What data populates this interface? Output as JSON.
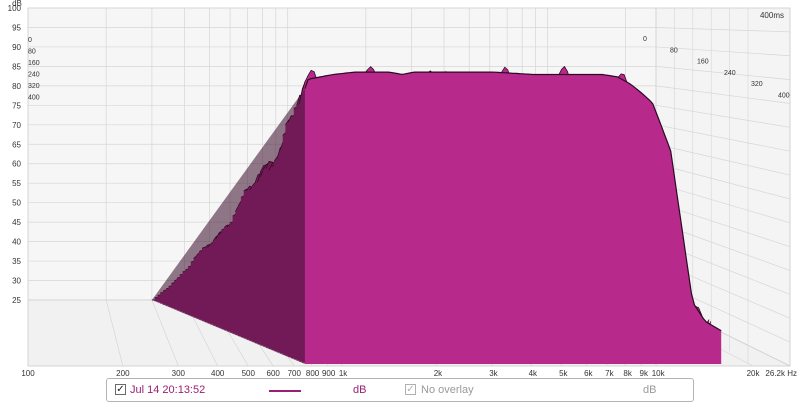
{
  "colors": {
    "surface_fill": "#b72a8c",
    "surface_line": "#2c0a21",
    "trace": "#9a1f73",
    "grid": "#d6d6d6",
    "wall_left": "#f4f4f4",
    "wall_back": "#f6f6f6",
    "floor": "#f1f1f1",
    "axis_text": "#333333",
    "muted_text": "#9a9a9a"
  },
  "chart_data": {
    "type": "area",
    "subtype": "waterfall-3d",
    "xscale": "log",
    "xlim": [
      100,
      26200
    ],
    "ylim": [
      25,
      100
    ],
    "time_range_ms": [
      0,
      400
    ],
    "x_unit": "Hz",
    "y_unit": "dB",
    "time_unit": "ms",
    "y_ticks": [
      "100",
      "95",
      "90",
      "85",
      "80",
      "75",
      "70",
      "65",
      "60",
      "55",
      "50",
      "45",
      "40",
      "35",
      "30",
      "25"
    ],
    "x_tick_values": [
      100,
      200,
      300,
      400,
      500,
      600,
      700,
      800,
      900,
      1000,
      2000,
      3000,
      4000,
      5000,
      6000,
      7000,
      8000,
      9000,
      10000,
      20000,
      26200
    ],
    "x_tick_labels": [
      "100",
      "200",
      "300",
      "400",
      "500",
      "600",
      "700",
      "800",
      "900",
      "1k",
      "2k",
      "3k",
      "4k",
      "5k",
      "6k",
      "7k",
      "8k",
      "9k",
      "10k",
      "20k",
      "26.2k Hz"
    ],
    "time_ticks_left": [
      "0",
      "80",
      "160",
      "240",
      "320",
      "400"
    ],
    "time_ticks_right": [
      "0",
      "80",
      "160",
      "240",
      "320",
      "400"
    ],
    "corner_label": "400ms",
    "y_unit_label": "dB",
    "front_slice": {
      "time_ms": 0,
      "x_hz": [
        300,
        310,
        400,
        500,
        600,
        700,
        800,
        900,
        1000,
        2000,
        3000,
        4000,
        5000,
        6000,
        7000,
        8000,
        9000,
        10000,
        12000,
        15000,
        17000,
        20000
      ],
      "db": [
        83,
        85,
        86,
        86.5,
        86.5,
        86.5,
        86,
        86.5,
        86.5,
        86.5,
        86,
        86,
        86,
        86,
        85.5,
        84,
        82,
        80,
        70,
        38,
        34,
        32
      ]
    },
    "back_slice": {
      "time_ms": 400,
      "x_hz": [
        300,
        400,
        1000,
        2000,
        5000,
        10000,
        20000
      ],
      "db": [
        25,
        25,
        25,
        25,
        25,
        25,
        25
      ]
    },
    "slice_count": 56
  },
  "legend": {
    "entry1": {
      "checked": true,
      "checkmark": "✓",
      "label": "Jul 14 20:13:52",
      "unit": "dB"
    },
    "entry2": {
      "checked": true,
      "checkmark": "✓",
      "label": "No overlay",
      "unit": "dB"
    }
  }
}
